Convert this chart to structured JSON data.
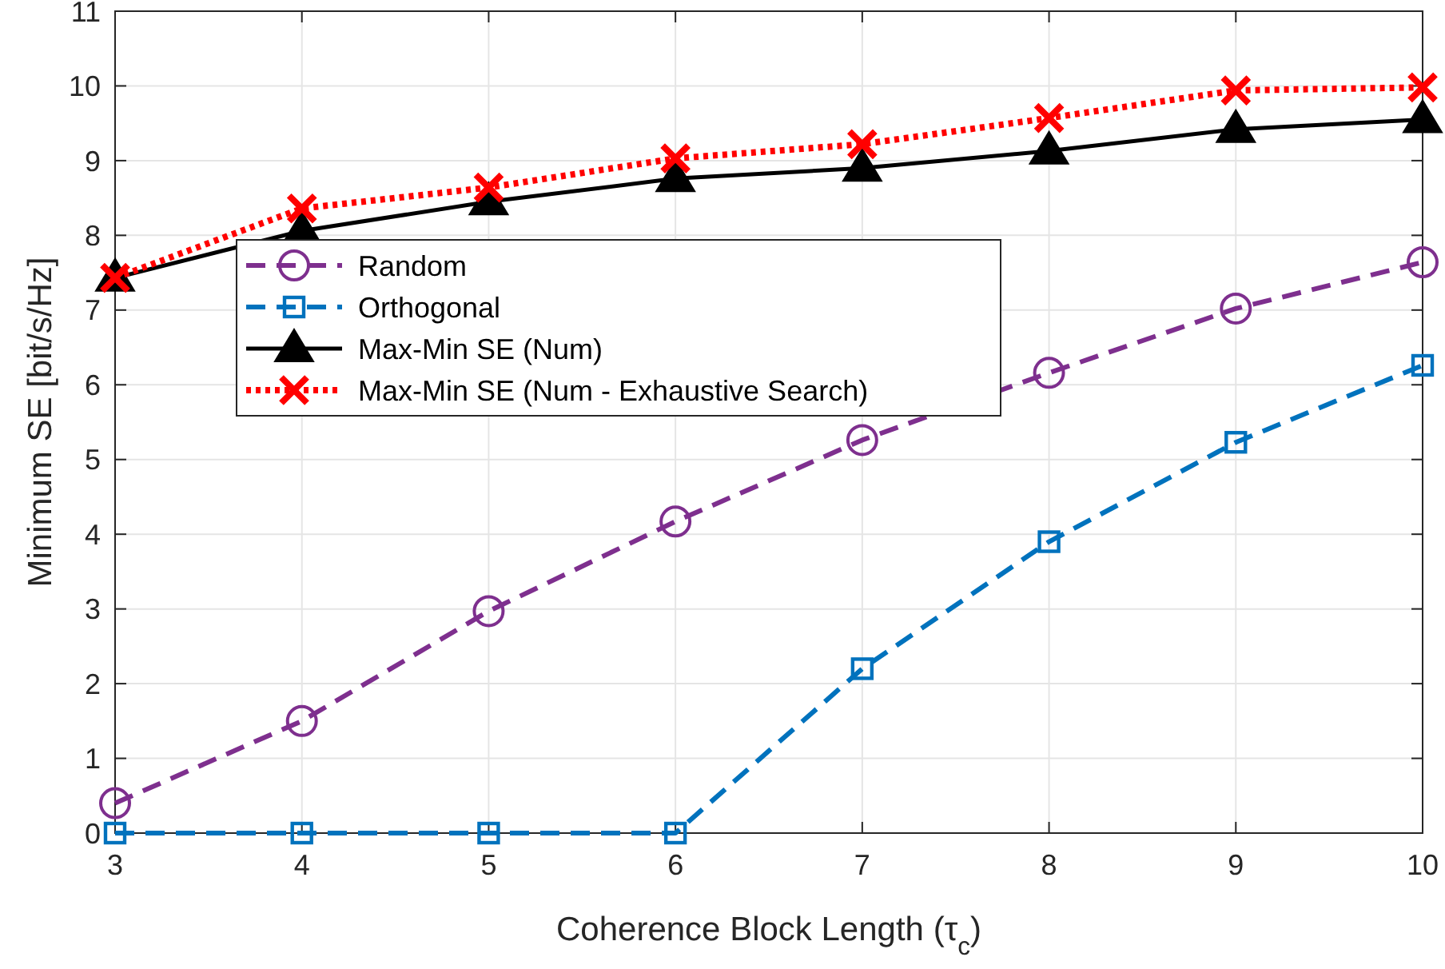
{
  "chart_data": {
    "type": "line",
    "xlabel": "Coherence Block Length (τ$_{c}$)",
    "ylabel": "Minimum SE [bit/s/Hz]",
    "x": [
      3,
      4,
      5,
      6,
      7,
      8,
      9,
      10
    ],
    "xlim": [
      3,
      10
    ],
    "xticks": [
      3,
      4,
      5,
      6,
      7,
      8,
      9,
      10
    ],
    "ylim": [
      0,
      11
    ],
    "yticks": [
      0,
      1,
      2,
      3,
      4,
      5,
      6,
      7,
      8,
      9,
      10,
      11
    ],
    "grid": true,
    "legend": "top left",
    "series": [
      {
        "name": "Random",
        "color": "#7e2f8e",
        "marker": "circle",
        "line_style": "dashed",
        "values": [
          0.4,
          1.5,
          2.97,
          4.17,
          5.26,
          6.16,
          7.02,
          7.64
        ]
      },
      {
        "name": "Orthogonal",
        "color": "#0072bd",
        "marker": "square",
        "line_style": "dashed",
        "values": [
          0,
          0,
          0,
          0,
          2.2,
          3.9,
          5.23,
          6.26
        ]
      },
      {
        "name": "Max-Min SE (Num)",
        "color": "#000000",
        "marker": "triangle",
        "line_style": "solid",
        "values": [
          7.43,
          8.06,
          8.45,
          8.76,
          8.9,
          9.13,
          9.42,
          9.55
        ]
      },
      {
        "name": "Max-Min SE (Num - Exhaustive Search)",
        "color": "#ff0000",
        "marker": "cross",
        "line_style": "dotted",
        "values": [
          7.43,
          8.36,
          8.64,
          9.03,
          9.22,
          9.57,
          9.94,
          9.98
        ]
      }
    ]
  }
}
